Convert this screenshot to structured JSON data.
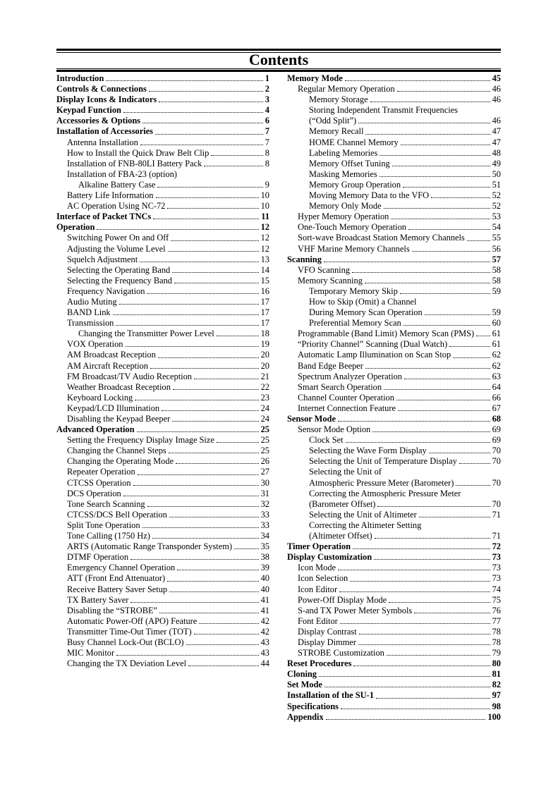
{
  "title": "Contents",
  "left": [
    {
      "level": 0,
      "text": "Introduction",
      "page": "1"
    },
    {
      "level": 0,
      "text": "Controls & Connections",
      "page": "2"
    },
    {
      "level": 0,
      "text": "Display Icons & Indicators",
      "page": "3"
    },
    {
      "level": 0,
      "text": "Keypad Function",
      "page": "4"
    },
    {
      "level": 0,
      "text": "Accessories & Options",
      "page": "6"
    },
    {
      "level": 0,
      "text": "Installation of Accessories",
      "page": "7"
    },
    {
      "level": 1,
      "text": "Antenna Installation",
      "page": "7"
    },
    {
      "level": 1,
      "text": "How to Install the Quick Draw Belt Clip",
      "page": "8"
    },
    {
      "level": 1,
      "text": "Installation of FNB-80LI Battery Pack",
      "page": "8"
    },
    {
      "level": 1,
      "text": "Installation of FBA-23 (option)",
      "page": ""
    },
    {
      "level": 2,
      "text": "Alkaline Battery Case",
      "page": "9"
    },
    {
      "level": 1,
      "text": "Battery Life Information",
      "page": "10"
    },
    {
      "level": 1,
      "text": "AC Operation Using NC-72",
      "page": "10"
    },
    {
      "level": 0,
      "text": "Interface of Packet TNCs",
      "page": "11"
    },
    {
      "level": 0,
      "text": "Operation",
      "page": "12"
    },
    {
      "level": 1,
      "text": "Switching Power On and Off",
      "page": "12"
    },
    {
      "level": 1,
      "text": "Adjusting the Volume Level",
      "page": "12"
    },
    {
      "level": 1,
      "text": "Squelch Adjustment",
      "page": "13"
    },
    {
      "level": 1,
      "text": "Selecting the Operating Band",
      "page": "14"
    },
    {
      "level": 1,
      "text": "Selecting the Frequency Band",
      "page": "15"
    },
    {
      "level": 1,
      "text": "Frequency Navigation",
      "page": "16"
    },
    {
      "level": 1,
      "text": "Audio Muting",
      "page": "17"
    },
    {
      "level": 1,
      "text": "BAND Link",
      "page": "17"
    },
    {
      "level": 1,
      "text": "Transmission",
      "page": "17"
    },
    {
      "level": 2,
      "text": "Changing the Transmitter Power Level",
      "page": "18"
    },
    {
      "level": 1,
      "text": "VOX Operation",
      "page": "19"
    },
    {
      "level": 1,
      "text": "AM Broadcast Reception",
      "page": "20"
    },
    {
      "level": 1,
      "text": "AM Aircraft Reception",
      "page": "20"
    },
    {
      "level": 1,
      "text": "FM Broadcast/TV Audio Reception",
      "page": "21"
    },
    {
      "level": 1,
      "text": "Weather Broadcast Reception",
      "page": "22"
    },
    {
      "level": 1,
      "text": "Keyboard Locking",
      "page": "23"
    },
    {
      "level": 1,
      "text": "Keypad/LCD Illumination",
      "page": "24"
    },
    {
      "level": 1,
      "text": "Disabling the Keypad Beeper",
      "page": "24"
    },
    {
      "level": 0,
      "text": "Advanced Operation",
      "page": "25"
    },
    {
      "level": 1,
      "text": "Setting the Frequency Display Image Size",
      "page": "25"
    },
    {
      "level": 1,
      "text": "Changing the Channel Steps",
      "page": "25"
    },
    {
      "level": 1,
      "text": "Changing the Operating Mode",
      "page": "26"
    },
    {
      "level": 1,
      "text": "Repeater Operation",
      "page": "27"
    },
    {
      "level": 1,
      "text": "CTCSS Operation",
      "page": "30"
    },
    {
      "level": 1,
      "text": "DCS Operation",
      "page": "31"
    },
    {
      "level": 1,
      "text": "Tone Search Scanning",
      "page": "32"
    },
    {
      "level": 1,
      "text": "CTCSS/DCS Bell Operation",
      "page": "33"
    },
    {
      "level": 1,
      "text": "Split Tone Operation",
      "page": "33"
    },
    {
      "level": 1,
      "text": "Tone Calling (1750 Hz)",
      "page": "34"
    },
    {
      "level": 1,
      "text": "ARTS (Automatic Range Transponder System)",
      "page": "35"
    },
    {
      "level": 1,
      "text": "DTMF Operation",
      "page": "38"
    },
    {
      "level": 1,
      "text": "Emergency Channel Operation",
      "page": "39"
    },
    {
      "level": 1,
      "text": "ATT (Front End Attenuator)",
      "page": "40"
    },
    {
      "level": 1,
      "text": "Receive Battery Saver Setup",
      "page": "40"
    },
    {
      "level": 1,
      "text": "TX Battery Saver",
      "page": "41"
    },
    {
      "level": 1,
      "text": "Disabling the “STROBE”",
      "page": "41"
    },
    {
      "level": 1,
      "text": "Automatic Power-Off (APO) Feature",
      "page": "42"
    },
    {
      "level": 1,
      "text": "Transmitter Time-Out Timer (TOT)",
      "page": "42"
    },
    {
      "level": 1,
      "text": "Busy Channel Lock-Out (BCLO)",
      "page": "43"
    },
    {
      "level": 1,
      "text": "MIC Monitor",
      "page": "43"
    },
    {
      "level": 1,
      "text": "Changing the TX Deviation Level",
      "page": "44"
    }
  ],
  "right": [
    {
      "level": 0,
      "text": "Memory Mode",
      "page": "45"
    },
    {
      "level": 1,
      "text": "Regular Memory Operation",
      "page": "46"
    },
    {
      "level": 2,
      "text": "Memory Storage",
      "page": "46"
    },
    {
      "level": 2,
      "text": "Storing Independent Transmit Frequencies",
      "page": ""
    },
    {
      "level": 2,
      "text": "(“Odd Split”)",
      "page": "46"
    },
    {
      "level": 2,
      "text": "Memory Recall",
      "page": "47"
    },
    {
      "level": 2,
      "text": "HOME Channel Memory",
      "page": "47"
    },
    {
      "level": 2,
      "text": "Labeling Memories",
      "page": "48"
    },
    {
      "level": 2,
      "text": "Memory Offset Tuning",
      "page": "49"
    },
    {
      "level": 2,
      "text": "Masking Memories",
      "page": "50"
    },
    {
      "level": 2,
      "text": "Memory Group Operation",
      "page": "51"
    },
    {
      "level": 2,
      "text": "Moving Memory Data to the VFO",
      "page": "52"
    },
    {
      "level": 2,
      "text": "Memory Only Mode",
      "page": "52"
    },
    {
      "level": 1,
      "text": "Hyper Memory Operation",
      "page": "53"
    },
    {
      "level": 1,
      "text": "One-Touch Memory Operation",
      "page": "54"
    },
    {
      "level": 1,
      "text": "Sort-wave Broadcast Station Memory Channels",
      "page": "55"
    },
    {
      "level": 1,
      "text": "VHF Marine Memory Channels",
      "page": "56"
    },
    {
      "level": 0,
      "text": "Scanning",
      "page": "57"
    },
    {
      "level": 1,
      "text": "VFO Scanning",
      "page": "58"
    },
    {
      "level": 1,
      "text": "Memory Scanning",
      "page": "58"
    },
    {
      "level": 2,
      "text": "Temporary Memory Skip",
      "page": "59"
    },
    {
      "level": 2,
      "text": "How to Skip (Omit) a Channel",
      "page": ""
    },
    {
      "level": 2,
      "text": "During Memory Scan Operation",
      "page": "59"
    },
    {
      "level": 2,
      "text": "Preferential Memory Scan",
      "page": "60"
    },
    {
      "level": 1,
      "text": "Programmable (Band Limit) Memory Scan (PMS)",
      "page": "61"
    },
    {
      "level": 1,
      "text": "“Priority Channel” Scanning (Dual Watch)",
      "page": "61"
    },
    {
      "level": 1,
      "text": "Automatic Lamp Illumination on Scan Stop",
      "page": "62"
    },
    {
      "level": 1,
      "text": "Band Edge Beeper",
      "page": "62"
    },
    {
      "level": 1,
      "text": "Spectrum Analyzer Operation",
      "page": "63"
    },
    {
      "level": 1,
      "text": "Smart Search Operation",
      "page": "64"
    },
    {
      "level": 1,
      "text": "Channel Counter Operation",
      "page": "66"
    },
    {
      "level": 1,
      "text": "Internet Connection Feature",
      "page": "67"
    },
    {
      "level": 0,
      "text": "Sensor Mode",
      "page": "68"
    },
    {
      "level": 1,
      "text": "Sensor Mode Option",
      "page": "69"
    },
    {
      "level": 2,
      "text": "Clock Set",
      "page": "69"
    },
    {
      "level": 2,
      "text": "Selecting the Wave Form Display",
      "page": "70"
    },
    {
      "level": 2,
      "text": "Selecting the Unit of Temperature Display",
      "page": "70"
    },
    {
      "level": 2,
      "text": "Selecting the Unit of",
      "page": ""
    },
    {
      "level": 2,
      "text": "Atmospheric Pressure Meter (Barometer)",
      "page": "70"
    },
    {
      "level": 2,
      "text": "Correcting the Atmospheric Pressure Meter",
      "page": ""
    },
    {
      "level": 2,
      "text": "(Barometer Offset)",
      "page": "70"
    },
    {
      "level": 2,
      "text": "Selecting the Unit of Altimeter",
      "page": "71"
    },
    {
      "level": 2,
      "text": "Correcting the Altimeter Setting",
      "page": ""
    },
    {
      "level": 2,
      "text": "(Altimeter Offset)",
      "page": "71"
    },
    {
      "level": 0,
      "text": "Timer Operation",
      "page": "72"
    },
    {
      "level": 0,
      "text": "Display Customization",
      "page": "73"
    },
    {
      "level": 1,
      "text": "Icon Mode",
      "page": "73"
    },
    {
      "level": 1,
      "text": "Icon Selection",
      "page": "73"
    },
    {
      "level": 1,
      "text": "Icon Editor",
      "page": "74"
    },
    {
      "level": 1,
      "text": "Power-Off Display Mode",
      "page": "75"
    },
    {
      "level": 1,
      "text": "S-and TX Power Meter Symbols",
      "page": "76"
    },
    {
      "level": 1,
      "text": "Font Editor",
      "page": "77"
    },
    {
      "level": 1,
      "text": "Display Contrast",
      "page": "78"
    },
    {
      "level": 1,
      "text": "Display Dimmer",
      "page": "78"
    },
    {
      "level": 1,
      "text": "STROBE Customization",
      "page": "79"
    },
    {
      "level": 0,
      "text": "Reset Procedures",
      "page": "80"
    },
    {
      "level": 0,
      "text": "Cloning",
      "page": "81"
    },
    {
      "level": 0,
      "text": "Set Mode",
      "page": "82"
    },
    {
      "level": 0,
      "text": "Installation of the SU-1",
      "page": "97"
    },
    {
      "level": 0,
      "text": "Specifications",
      "page": "98"
    },
    {
      "level": 0,
      "text": "Appendix",
      "page": "100"
    }
  ]
}
